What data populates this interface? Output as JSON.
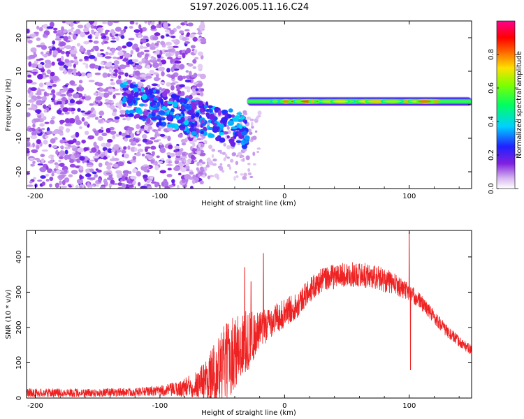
{
  "title": "S197.2026.005.11.16.C24",
  "chart_data": [
    {
      "type": "heatmap",
      "name": "spectrogram",
      "xlabel": "Height of straight line (km)",
      "ylabel": "Frequency (Hz)",
      "xlim": [
        -207,
        150
      ],
      "ylim": [
        -25,
        25
      ],
      "xticks": [
        -200,
        -100,
        0,
        100
      ],
      "yticks": [
        -20,
        -10,
        0,
        10,
        20
      ],
      "colorbar": {
        "label": "Normalized spectral amplitude",
        "range": [
          0,
          1
        ],
        "ticks": [
          0.0,
          0.2,
          0.4,
          0.6,
          0.8
        ],
        "tick_labels": [
          "0.0",
          "0.2",
          "0.4",
          "0.6",
          "0.8"
        ],
        "colors": [
          "#ffffff",
          "#d8b8f0",
          "#8020e0",
          "#2020ff",
          "#00d0ff",
          "#00ff60",
          "#80ff00",
          "#ffe000",
          "#ff6000",
          "#ff0000",
          "#ff0090"
        ]
      },
      "features": [
        {
          "description": "scattered noise blobs",
          "x_range": [
            -207,
            -65
          ],
          "freq_range": [
            -25,
            25
          ],
          "amplitude": 0.15
        },
        {
          "description": "dispersive onset",
          "x_range": [
            -130,
            -30
          ],
          "freq_center": [
            2,
            -8
          ],
          "amplitude": 0.3
        },
        {
          "description": "main signal band",
          "x_range": [
            -30,
            150
          ],
          "freq_center": 1,
          "amplitude": 0.55
        },
        {
          "description": "peak segments",
          "x_range": [
            -15,
            125
          ],
          "freq_center": 1,
          "amplitude": 0.85
        }
      ]
    },
    {
      "type": "line",
      "name": "snr",
      "xlabel": "Height of straight line (km)",
      "ylabel": "SNR (10 * v/v)",
      "xlim": [
        -207,
        150
      ],
      "ylim": [
        0,
        475
      ],
      "xticks": [
        -200,
        -100,
        0,
        100
      ],
      "yticks": [
        0,
        100,
        200,
        300,
        400
      ],
      "series": [
        {
          "name": "SNR",
          "color": "#ee2222",
          "envelope": {
            "x": [
              -207,
              -180,
              -150,
              -120,
              -100,
              -85,
              -70,
              -60,
              -50,
              -40,
              -30,
              -20,
              -10,
              0,
              10,
              20,
              30,
              40,
              50,
              60,
              70,
              80,
              90,
              100,
              110,
              120,
              130,
              140,
              150
            ],
            "baseline": [
              15,
              15,
              15,
              17,
              20,
              25,
              40,
              60,
              90,
              130,
              160,
              190,
              220,
              240,
              265,
              305,
              335,
              345,
              350,
              350,
              345,
              335,
              320,
              300,
              270,
              230,
              190,
              160,
              135
            ],
            "amplitude": [
              12,
              12,
              12,
              12,
              15,
              22,
              40,
              70,
              110,
              110,
              90,
              55,
              45,
              40,
              38,
              35,
              35,
              35,
              35,
              35,
              35,
              35,
              30,
              25,
              22,
              20,
              18,
              15,
              15
            ]
          },
          "spikes": [
            {
              "x": -32,
              "value": 370
            },
            {
              "x": -27,
              "value": 330
            },
            {
              "x": -17,
              "value": 410
            },
            {
              "x": 100,
              "value": 470
            },
            {
              "x": 101,
              "value": 80
            }
          ]
        }
      ]
    }
  ]
}
